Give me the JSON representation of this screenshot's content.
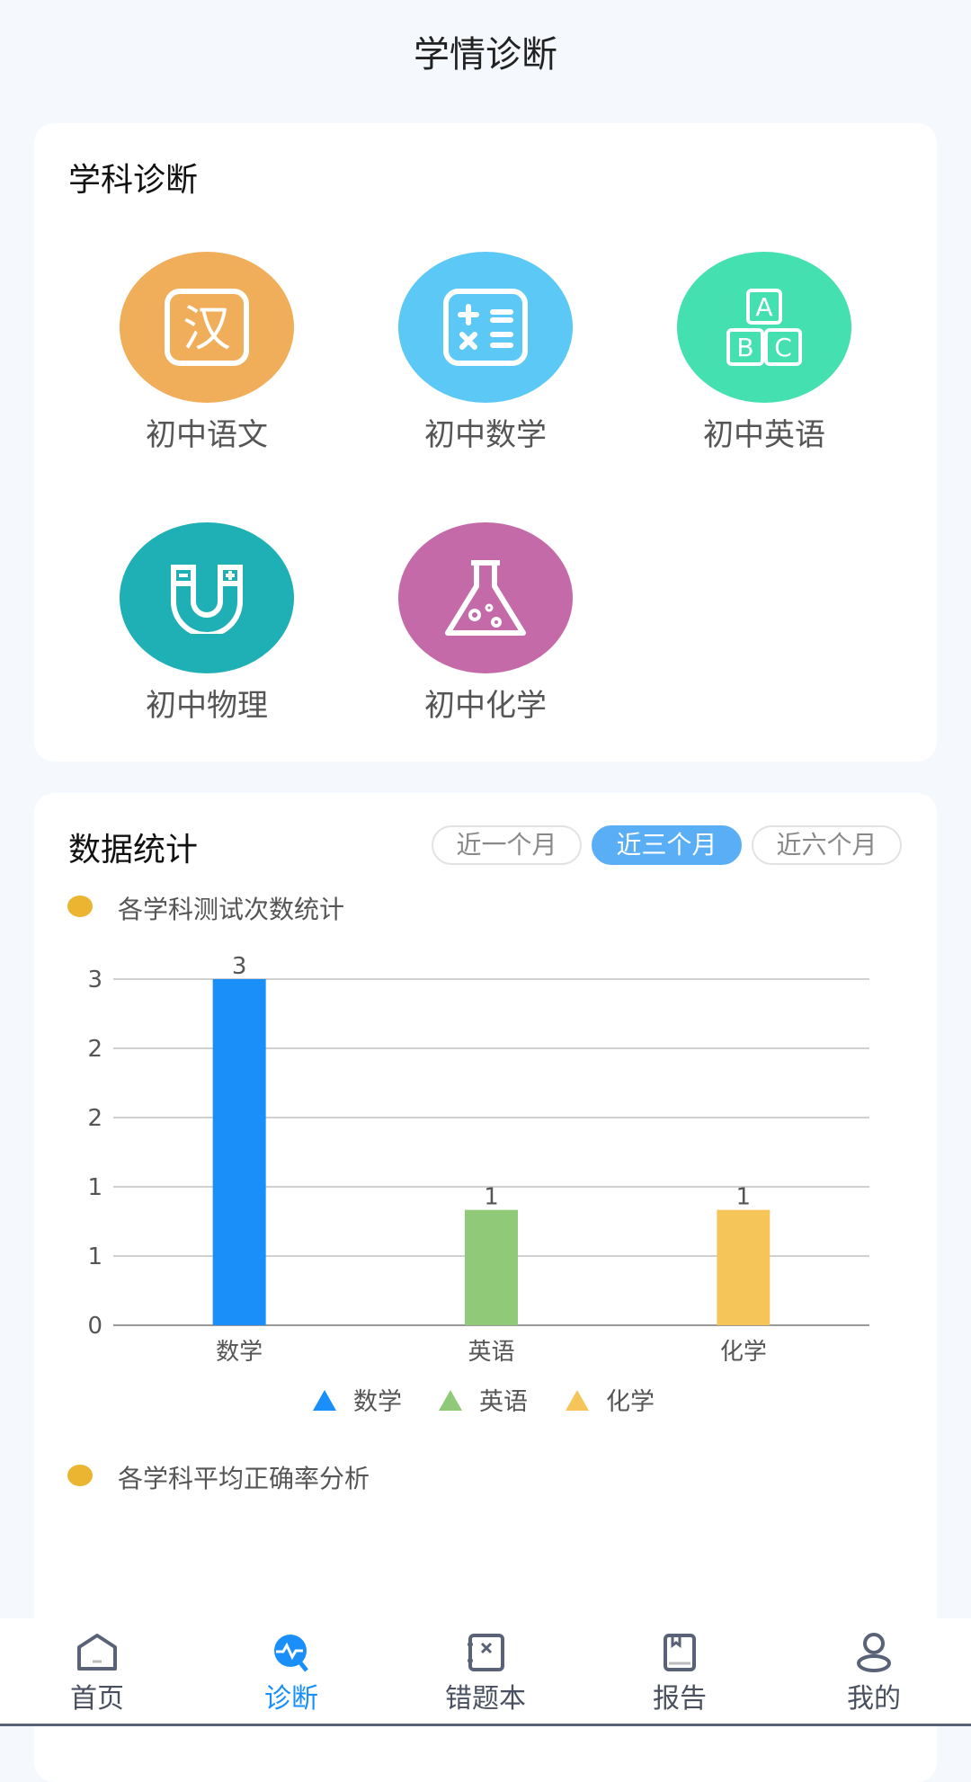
{
  "header": {
    "title": "学情诊断"
  },
  "subjects_card": {
    "title": "学科诊断",
    "items": [
      {
        "label": "初中语文",
        "icon": "han-character-icon",
        "color": "#f0ae5a"
      },
      {
        "label": "初中数学",
        "icon": "calculator-icon",
        "color": "#5cc8f5"
      },
      {
        "label": "初中英语",
        "icon": "abc-blocks-icon",
        "color": "#45e0b0"
      },
      {
        "label": "初中物理",
        "icon": "magnet-icon",
        "color": "#1fb0b5"
      },
      {
        "label": "初中化学",
        "icon": "flask-icon",
        "color": "#c56aa8"
      }
    ]
  },
  "stats_card": {
    "title": "数据统计",
    "ranges": [
      "近一个月",
      "近三个月",
      "近六个月"
    ],
    "selected_range": "近三个月",
    "section1": "各学科测试次数统计",
    "section2": "各学科平均正确率分析"
  },
  "chart_data": {
    "type": "bar",
    "categories": [
      "数学",
      "英语",
      "化学"
    ],
    "values": [
      3,
      1,
      1
    ],
    "colors": [
      "#1a8ffa",
      "#90c978",
      "#f6c55a"
    ],
    "ytick_labels": [
      "0",
      "1",
      "1",
      "2",
      "2",
      "3"
    ],
    "ylim": [
      0,
      3
    ],
    "grid": true,
    "legend": [
      "数学",
      "英语",
      "化学"
    ],
    "legend_position": "bottom",
    "data_labels": [
      "3",
      "1",
      "1"
    ]
  },
  "nav": {
    "items": [
      {
        "label": "首页",
        "icon": "home-icon"
      },
      {
        "label": "诊断",
        "icon": "diagnosis-icon",
        "active": true
      },
      {
        "label": "错题本",
        "icon": "wrong-book-icon"
      },
      {
        "label": "报告",
        "icon": "report-icon"
      },
      {
        "label": "我的",
        "icon": "profile-icon"
      }
    ]
  }
}
